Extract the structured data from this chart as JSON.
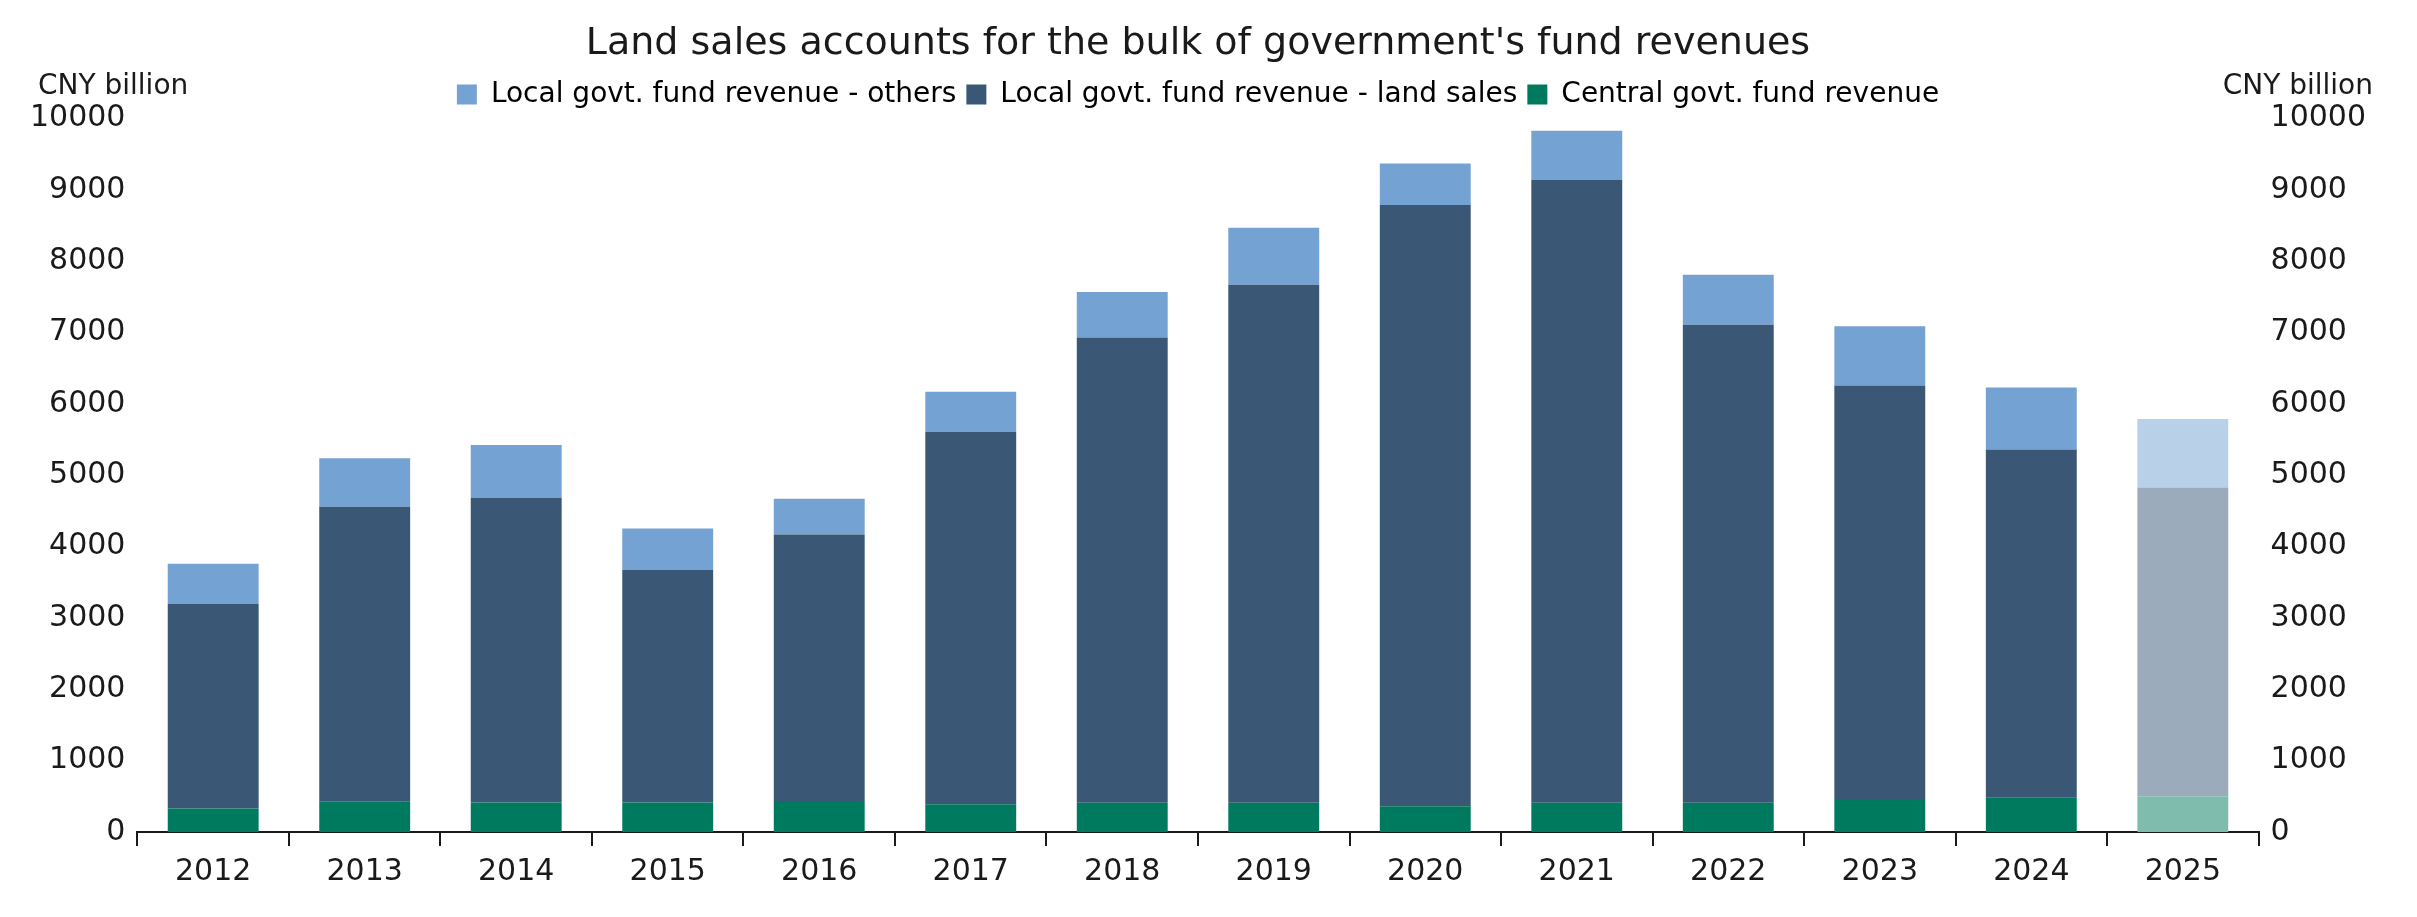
{
  "chart_data": {
    "type": "bar",
    "title": "Land sales accounts for the bulk of government's fund revenues",
    "categories": [
      "2012",
      "2013",
      "2014",
      "2015",
      "2016",
      "2017",
      "2018",
      "2019",
      "2020",
      "2021",
      "2022",
      "2023",
      "2024",
      "2025"
    ],
    "stacked": true,
    "series": [
      {
        "name": "Central govt. fund revenue",
        "color": "#007a5e",
        "colors": [
          "#007a5e",
          "#007a5e",
          "#007a5e",
          "#007a5e",
          "#007a5e",
          "#007a5e",
          "#007a5e",
          "#007a5e",
          "#007a5e",
          "#007a5e",
          "#007a5e",
          "#007a5e",
          "#007a5e",
          "#80bcae"
        ],
        "values": [
          330,
          430,
          415,
          415,
          420,
          390,
          410,
          410,
          360,
          410,
          410,
          450,
          480,
          500
        ]
      },
      {
        "name": "Local govt. fund revenue - land sales",
        "color": "#3a5876",
        "colors": [
          "#3a5876",
          "#3a5876",
          "#3a5876",
          "#3a5876",
          "#3a5876",
          "#3a5876",
          "#3a5876",
          "#3a5876",
          "#3a5876",
          "#3a5876",
          "#3a5876",
          "#3a5876",
          "#3a5876",
          "#9babbb"
        ],
        "values": [
          2870,
          4130,
          4270,
          3260,
          3750,
          5220,
          6520,
          7260,
          8430,
          8730,
          6700,
          5810,
          4880,
          4330
        ]
      },
      {
        "name": "Local govt. fund revenue - others",
        "color": "#74a2d3",
        "colors": [
          "#74a2d3",
          "#74a2d3",
          "#74a2d3",
          "#74a2d3",
          "#74a2d3",
          "#74a2d3",
          "#74a2d3",
          "#74a2d3",
          "#74a2d3",
          "#74a2d3",
          "#74a2d3",
          "#74a2d3",
          "#74a2d3",
          "#b8d0e8"
        ],
        "values": [
          560,
          680,
          740,
          580,
          500,
          560,
          640,
          800,
          580,
          690,
          700,
          830,
          870,
          960
        ]
      }
    ],
    "ylabel": "CNY billion",
    "y2label": "CNY billion",
    "ylim": [
      0,
      10000
    ],
    "yticks": [
      0,
      1000,
      2000,
      3000,
      4000,
      5000,
      6000,
      7000,
      8000,
      9000,
      10000
    ],
    "y2lim": [
      0,
      10000
    ],
    "y2ticks": [
      0,
      1000,
      2000,
      3000,
      4000,
      5000,
      6000,
      7000,
      8000,
      9000,
      10000
    ],
    "legend": "top",
    "grid": false
  }
}
